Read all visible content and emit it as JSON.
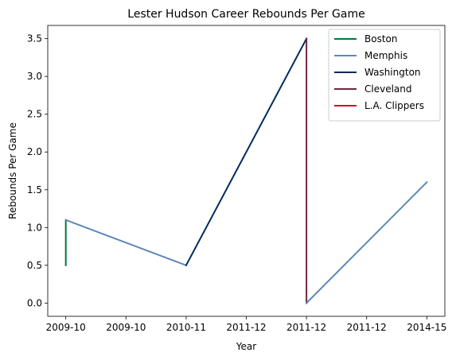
{
  "chart_data": {
    "type": "line",
    "title": "Lester Hudson Career Rebounds Per Game",
    "xlabel": "Year",
    "ylabel": "Rebounds Per Game",
    "x_tick_labels": [
      "2009-10",
      "2009-10",
      "2010-11",
      "2011-12",
      "2011-12",
      "2011-12",
      "2014-15"
    ],
    "ylim": [
      -0.175,
      3.675
    ],
    "y_ticks": [
      0.0,
      0.5,
      1.0,
      1.5,
      2.0,
      2.5,
      3.0,
      3.5
    ],
    "y_tick_labels": [
      "0.0",
      "0.5",
      "1.0",
      "1.5",
      "2.0",
      "2.5",
      "3.0",
      "3.5"
    ],
    "grid": false,
    "legend_position": "top-right",
    "series": [
      {
        "name": "Boston",
        "color": "#007a33",
        "points": [
          [
            0,
            0.5
          ],
          [
            0,
            1.1
          ]
        ]
      },
      {
        "name": "Memphis",
        "color": "#5d87b9",
        "points": [
          [
            0,
            1.1
          ],
          [
            2,
            0.5
          ]
        ]
      },
      {
        "name": "Washington",
        "color": "#002b5c",
        "points": [
          [
            2,
            0.5
          ],
          [
            4,
            3.5
          ]
        ]
      },
      {
        "name": "Cleveland",
        "color": "#6f263d",
        "points": [
          [
            4,
            3.5
          ],
          [
            4,
            0.0
          ]
        ]
      },
      {
        "name": "L.A. Clippers",
        "color": "#c8102e",
        "points": [
          [
            4,
            0.0
          ],
          [
            4,
            0.0
          ]
        ]
      },
      {
        "name": "Memphis",
        "color": "#5d87b9",
        "points": [
          [
            4,
            0.0
          ],
          [
            6,
            1.6
          ]
        ]
      }
    ],
    "legend": [
      {
        "name": "Boston",
        "color": "#007a33"
      },
      {
        "name": "Memphis",
        "color": "#5d87b9"
      },
      {
        "name": "Washington",
        "color": "#002b5c"
      },
      {
        "name": "Cleveland",
        "color": "#6f263d"
      },
      {
        "name": "L.A. Clippers",
        "color": "#c8102e"
      }
    ]
  }
}
